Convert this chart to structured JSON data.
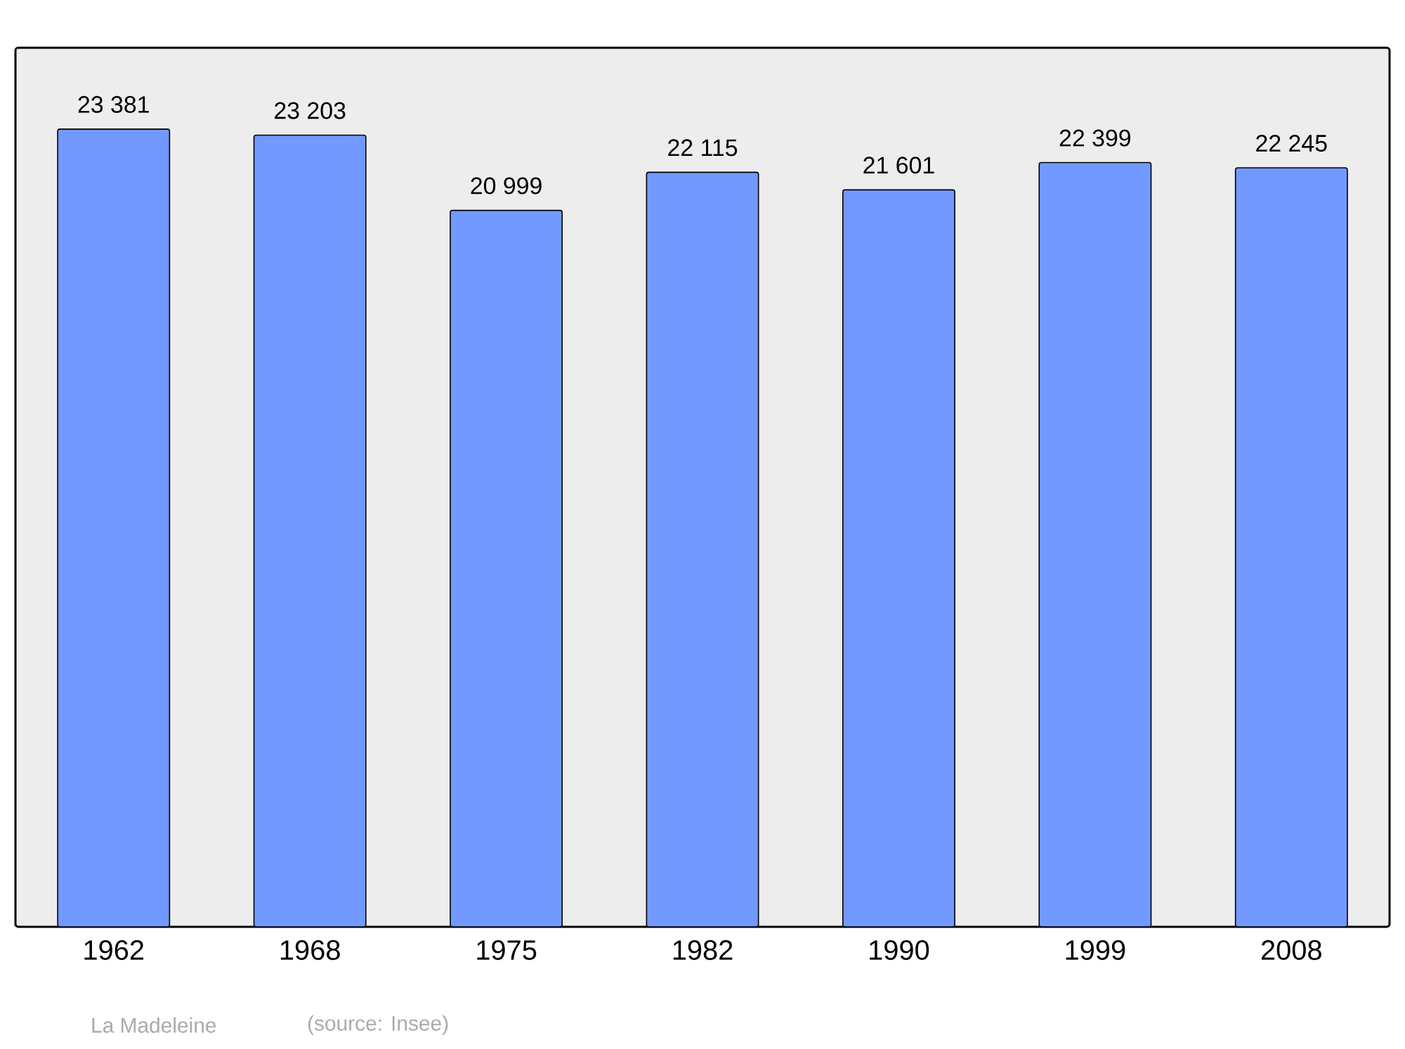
{
  "chart_data": {
    "type": "bar",
    "categories": [
      "1962",
      "1968",
      "1975",
      "1982",
      "1990",
      "1999",
      "2008"
    ],
    "values": [
      23381,
      23203,
      20999,
      22115,
      21601,
      22399,
      22245
    ],
    "value_labels": [
      "23 381",
      "23 203",
      "20 999",
      "22 115",
      "21 601",
      "22 399",
      "22 245"
    ],
    "color": "#7299ff",
    "annotations": [
      "La Madeleine",
      "(source: Insee)"
    ]
  }
}
